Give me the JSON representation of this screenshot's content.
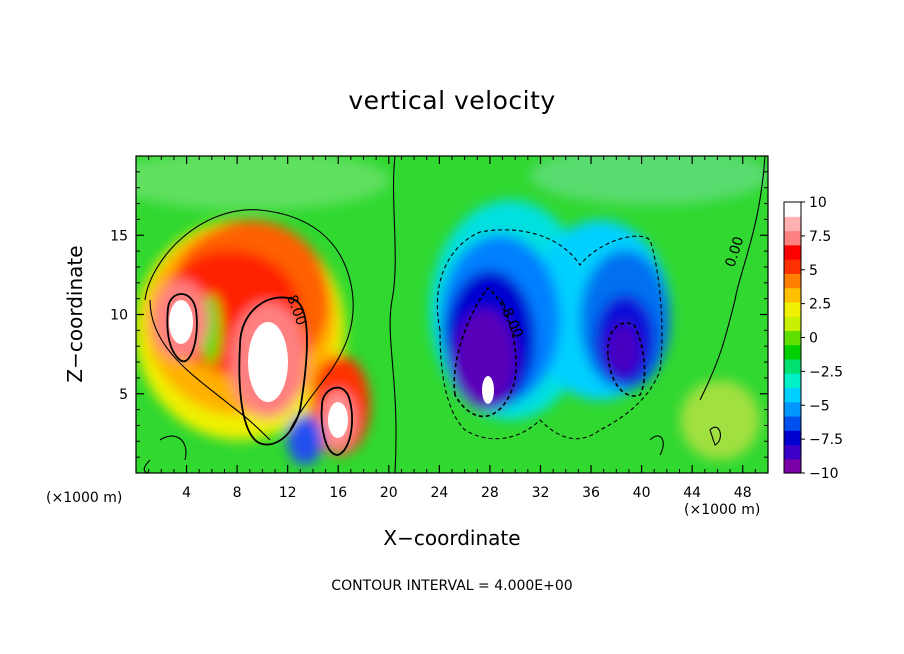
{
  "chart_data": {
    "type": "heatmap",
    "title": "vertical velocity",
    "xlabel": "X−coordinate",
    "ylabel": "Z−coordinate",
    "x_unit_left": "(×1000 m)",
    "x_unit_right": "(×1000 m)",
    "footer": "CONTOUR INTERVAL = 4.000E+00",
    "xlim": [
      0,
      50
    ],
    "ylim": [
      0,
      20
    ],
    "x_ticks": [
      "4",
      "8",
      "12",
      "16",
      "20",
      "24",
      "28",
      "32",
      "36",
      "40",
      "44",
      "48"
    ],
    "x_tick_values": [
      4,
      8,
      12,
      16,
      20,
      24,
      28,
      32,
      36,
      40,
      44,
      48
    ],
    "y_ticks": [
      "5",
      "10",
      "15"
    ],
    "y_tick_values": [
      5,
      10,
      15
    ],
    "colorbar": {
      "labels": [
        "10",
        "7.5",
        "5",
        "2.5",
        "0",
        "−2.5",
        "−5",
        "−7.5",
        "−10"
      ],
      "values": [
        10,
        7.5,
        5,
        2.5,
        0,
        -2.5,
        -5,
        -7.5,
        -10
      ],
      "range": [
        -10,
        10
      ],
      "colors": [
        "#7a00a8",
        "#3a00c8",
        "#0000d0",
        "#0050f0",
        "#0098ff",
        "#00d0ff",
        "#00f0c8",
        "#00e070",
        "#00d000",
        "#60e000",
        "#c8f000",
        "#f0f000",
        "#ffc000",
        "#ff8000",
        "#ff3000",
        "#ff0000",
        "#ff8080",
        "#ffb0b0",
        "#ffffff"
      ]
    },
    "contour_labels": [
      "8.00",
      "−8.00",
      "0.00"
    ],
    "features": [
      {
        "kind": "updraft",
        "x": 3.5,
        "z": 9.5,
        "w": 12
      },
      {
        "kind": "updraft",
        "x": 10.5,
        "z": 6.5,
        "w": 12
      },
      {
        "kind": "updraft",
        "x": 16.0,
        "z": 3.5,
        "w": 10
      },
      {
        "kind": "downdraft",
        "x": 27.5,
        "z": 6.5,
        "w": -11
      },
      {
        "kind": "downdraft",
        "x": 39.0,
        "z": 7.5,
        "w": -9
      }
    ]
  }
}
